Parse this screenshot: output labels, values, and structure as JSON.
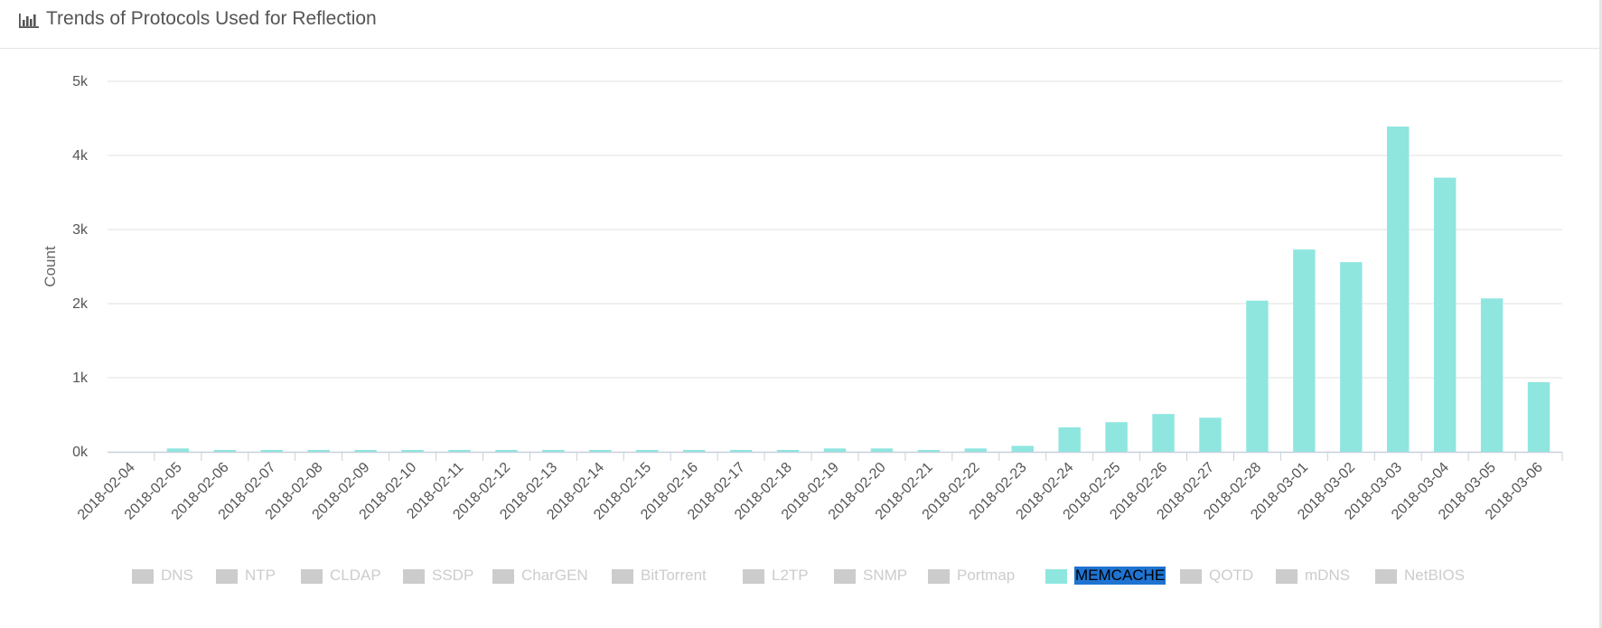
{
  "header": {
    "title": "Trends of Protocols Used for Reflection",
    "icon": "bar-chart-icon"
  },
  "chart_data": {
    "type": "bar",
    "ylabel": "Count",
    "yticks": [
      "0k",
      "1k",
      "2k",
      "3k",
      "4k",
      "5k"
    ],
    "ylim": [
      0,
      5000
    ],
    "grid": true,
    "legend_position": "bottom",
    "categories": [
      "2018-02-04",
      "2018-02-05",
      "2018-02-06",
      "2018-02-07",
      "2018-02-08",
      "2018-02-09",
      "2018-02-10",
      "2018-02-11",
      "2018-02-12",
      "2018-02-13",
      "2018-02-14",
      "2018-02-15",
      "2018-02-16",
      "2018-02-17",
      "2018-02-18",
      "2018-02-19",
      "2018-02-20",
      "2018-02-21",
      "2018-02-22",
      "2018-02-23",
      "2018-02-24",
      "2018-02-25",
      "2018-02-26",
      "2018-02-27",
      "2018-02-28",
      "2018-03-01",
      "2018-03-02",
      "2018-03-03",
      "2018-03-04",
      "2018-03-05",
      "2018-03-06"
    ],
    "series": [
      {
        "name": "MEMCACHE",
        "color": "#8ee6df",
        "values": [
          0,
          45,
          25,
          25,
          25,
          25,
          25,
          25,
          25,
          25,
          25,
          25,
          25,
          25,
          25,
          45,
          45,
          25,
          45,
          80,
          330,
          400,
          510,
          460,
          2040,
          2730,
          2560,
          4390,
          3700,
          2070,
          940
        ]
      }
    ]
  },
  "legend": {
    "items": [
      {
        "label": "DNS",
        "active": false
      },
      {
        "label": "NTP",
        "active": false
      },
      {
        "label": "CLDAP",
        "active": false
      },
      {
        "label": "SSDP",
        "active": false
      },
      {
        "label": "CharGEN",
        "active": false
      },
      {
        "label": "BitTorrent",
        "active": false
      },
      {
        "label": "L2TP",
        "active": false
      },
      {
        "label": "SNMP",
        "active": false
      },
      {
        "label": "Portmap",
        "active": false
      },
      {
        "label": "MEMCACHE",
        "active": true
      },
      {
        "label": "QOTD",
        "active": false
      },
      {
        "label": "mDNS",
        "active": false
      },
      {
        "label": "NetBIOS",
        "active": false
      }
    ],
    "inactive_color": "#cccccc",
    "active_color": "#8ee6df"
  }
}
